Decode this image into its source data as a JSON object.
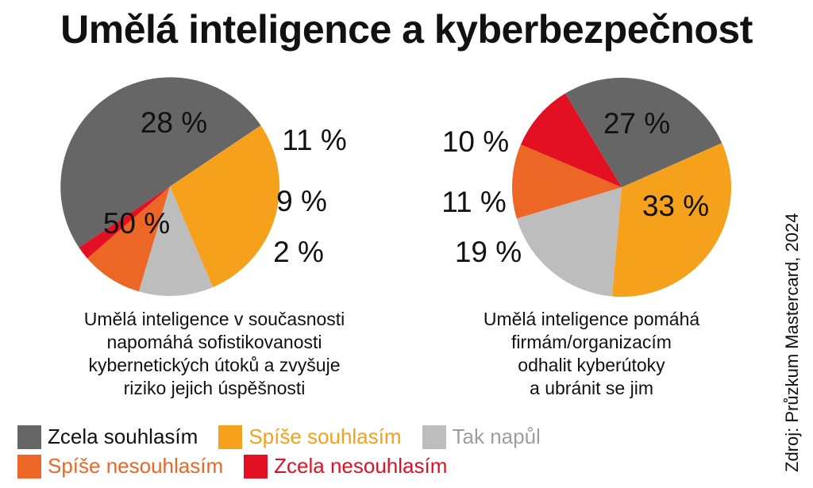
{
  "title": "Umělá inteligence a kyberbezpečnost",
  "source": "Zdroj: Průzkum Mastercard, 2024",
  "legend": [
    {
      "label": "Zcela souhlasím",
      "color": "#666666",
      "text_color": "#111111"
    },
    {
      "label": "Spíše souhlasím",
      "color": "#f5a11c",
      "text_color": "#f5a11c"
    },
    {
      "label": "Tak napůl",
      "color": "#bdbdbd",
      "text_color": "#9e9e9e"
    },
    {
      "label": "Spíše nesouhlasím",
      "color": "#ec6625",
      "text_color": "#ec6625"
    },
    {
      "label": "Zcela nesouhlasím",
      "color": "#e30f22",
      "text_color": "#e30f22"
    }
  ],
  "chart_data": [
    {
      "type": "pie",
      "title": "Umělá inteligence v současnosti\nnapomáhá sofistikovanosti\nkybernetických útoků a zvyšuje\nriziko jejich úspěšnosti",
      "categories": [
        "Zcela souhlasím",
        "Spíše souhlasím",
        "Tak napůl",
        "Spíše nesouhlasím",
        "Zcela nesouhlasím"
      ],
      "values": [
        50,
        28,
        11,
        9,
        2
      ],
      "labels": [
        "50 %",
        "28 %",
        "11 %",
        "9 %",
        "2 %"
      ],
      "colors": [
        "#666666",
        "#f5a11c",
        "#bdbdbd",
        "#ec6625",
        "#e30f22"
      ]
    },
    {
      "type": "pie",
      "title": "Umělá inteligence pomáhá\nfirmám/organizacím\nodhalit kyberútoky\na ubránit se jim",
      "categories": [
        "Zcela souhlasím",
        "Spíše souhlasím",
        "Tak napůl",
        "Spíše nesouhlasím",
        "Zcela nesouhlasím"
      ],
      "values": [
        27,
        33,
        19,
        11,
        10
      ],
      "labels": [
        "27 %",
        "33 %",
        "19 %",
        "11 %",
        "10 %"
      ],
      "colors": [
        "#666666",
        "#f5a11c",
        "#bdbdbd",
        "#ec6625",
        "#e30f22"
      ]
    }
  ]
}
